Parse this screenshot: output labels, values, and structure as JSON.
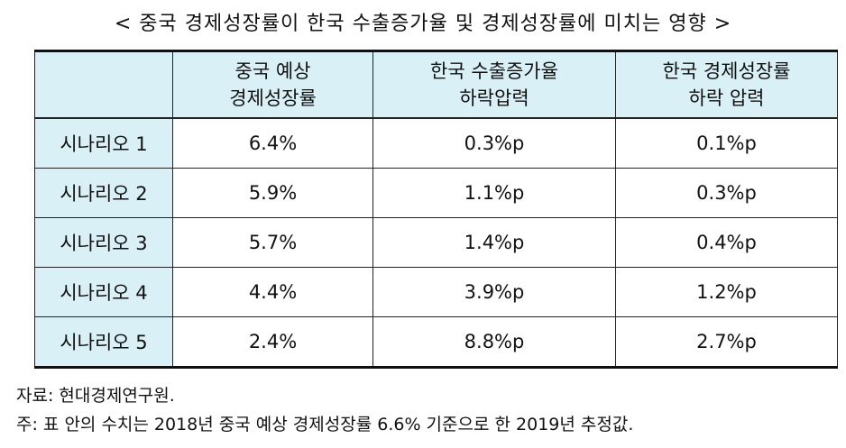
{
  "title": "< 중국 경제성장률이 한국 수출증가율 및 경제성장률에 미치는 영향 >",
  "table": {
    "headers": [
      {
        "line1": "",
        "line2": ""
      },
      {
        "line1": "중국 예상",
        "line2": "경제성장률"
      },
      {
        "line1": "한국 수출증가율",
        "line2": "하락압력"
      },
      {
        "line1": "한국 경제성장률",
        "line2": "하락 압력"
      }
    ],
    "rows": [
      {
        "scenario": "시나리오 1",
        "china_growth": "6.4%",
        "export_pressure": "0.3%p",
        "growth_pressure": "0.1%p"
      },
      {
        "scenario": "시나리오 2",
        "china_growth": "5.9%",
        "export_pressure": "1.1%p",
        "growth_pressure": "0.3%p"
      },
      {
        "scenario": "시나리오 3",
        "china_growth": "5.7%",
        "export_pressure": "1.4%p",
        "growth_pressure": "0.4%p"
      },
      {
        "scenario": "시나리오 4",
        "china_growth": "4.4%",
        "export_pressure": "3.9%p",
        "growth_pressure": "1.2%p"
      },
      {
        "scenario": "시나리오 5",
        "china_growth": "2.4%",
        "export_pressure": "8.8%p",
        "growth_pressure": "2.7%p"
      }
    ]
  },
  "notes": {
    "source": "자료: 현대경제연구원.",
    "memo": "주: 표 안의 수치는 2018년 중국 예상 경제성장률 6.6% 기준으로 한 2019년 추정값."
  },
  "colors": {
    "header_fill": "#d9f1f6",
    "border": "#222222",
    "text": "#111111"
  }
}
